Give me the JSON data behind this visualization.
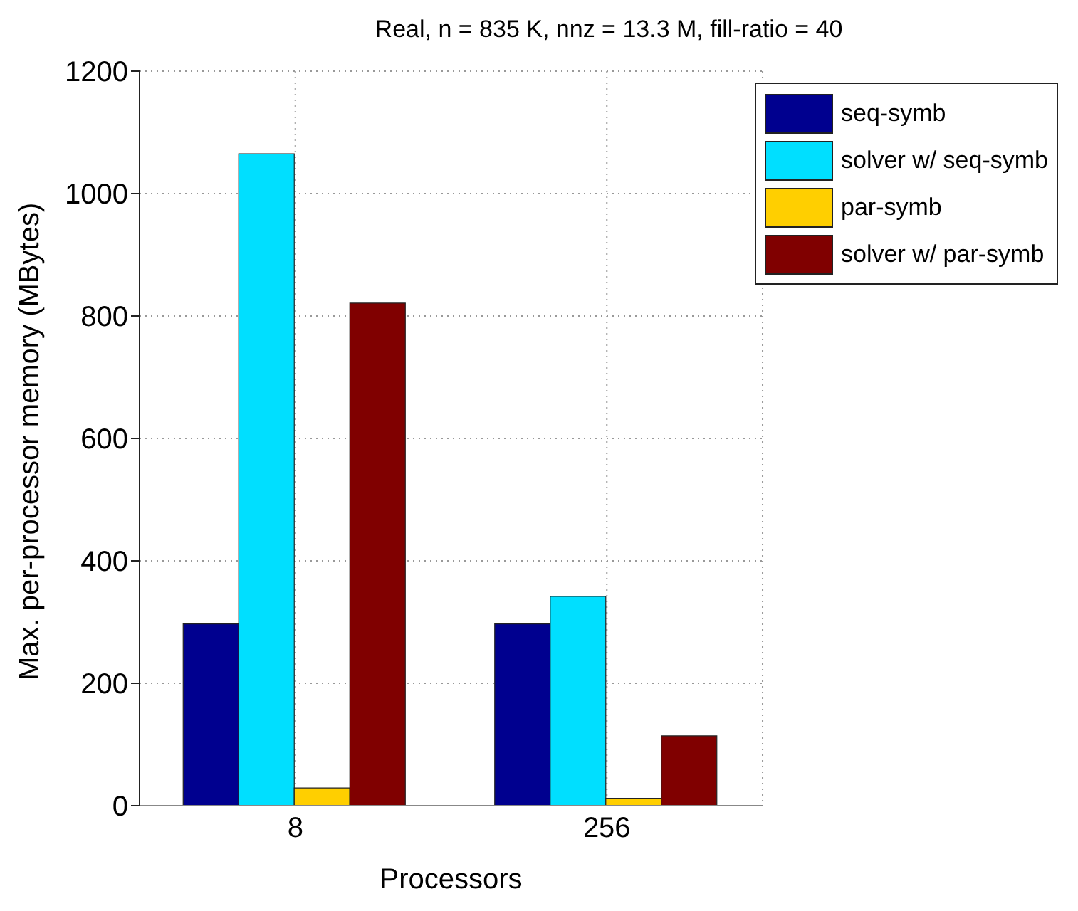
{
  "chart_data": {
    "type": "bar",
    "title": "Real, n = 835 K, nnz = 13.3 M, fill-ratio = 40",
    "xlabel": "Processors",
    "ylabel": "Max. per-processor memory (MBytes)",
    "categories": [
      "8",
      "256"
    ],
    "series": [
      {
        "name": "seq-symb",
        "color": "#00008f",
        "values": [
          297,
          297
        ]
      },
      {
        "name": "solver w/ seq-symb",
        "color": "#00dfff",
        "values": [
          1065,
          342
        ]
      },
      {
        "name": "par-symb",
        "color": "#ffcf00",
        "values": [
          29,
          12
        ]
      },
      {
        "name": "solver w/ par-symb",
        "color": "#800000",
        "values": [
          821,
          114
        ]
      }
    ],
    "ylim": [
      0,
      1200
    ],
    "yticks": [
      0,
      200,
      400,
      600,
      800,
      1000,
      1200
    ],
    "grid": true,
    "legend": "top right"
  }
}
